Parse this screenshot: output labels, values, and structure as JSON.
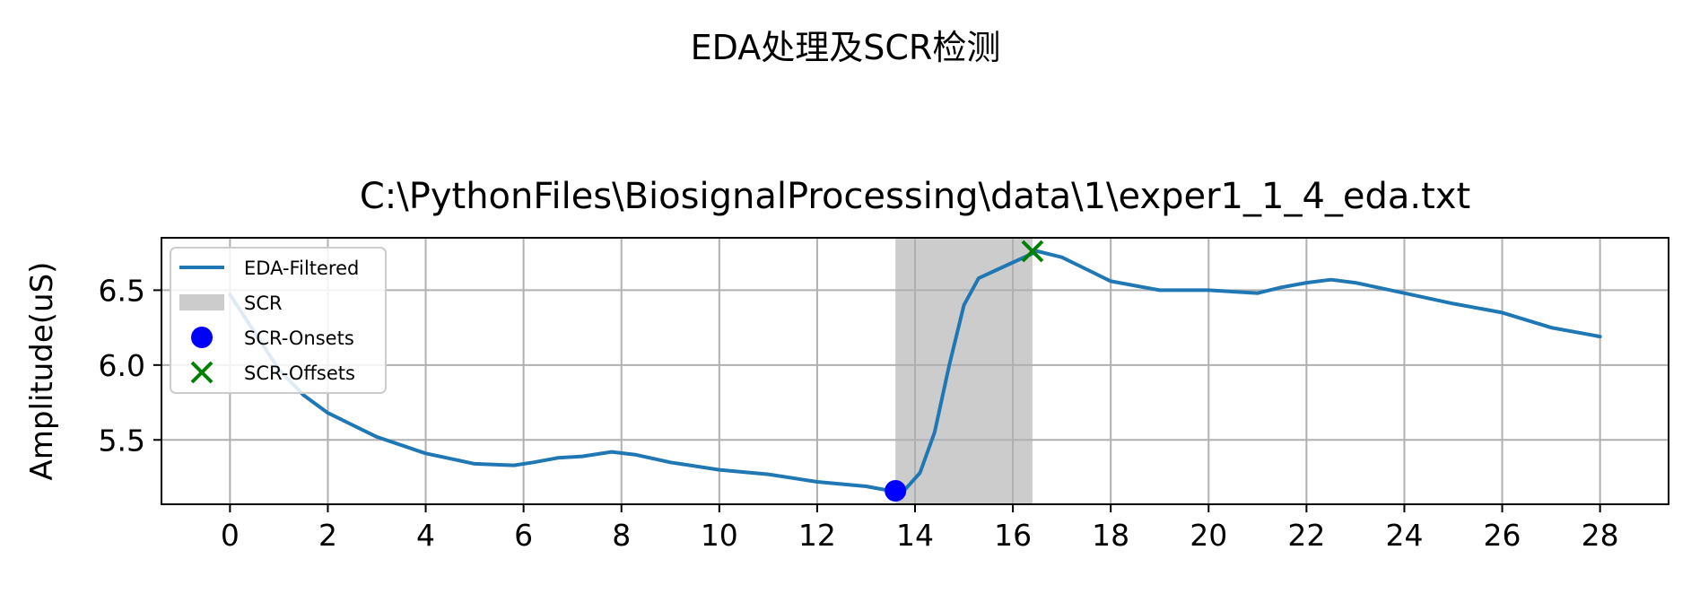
{
  "figure": {
    "suptitle": "EDA处理及SCR检测"
  },
  "chart_data": {
    "type": "line",
    "title": "C:\\PythonFiles\\BiosignalProcessing\\data\\1\\exper1_1_4_eda.txt",
    "xlabel": "",
    "ylabel": "Amplitude(uS)",
    "xlim": [
      -1.4,
      29.4
    ],
    "ylim": [
      5.07,
      6.85
    ],
    "xticks": [
      0,
      2,
      4,
      6,
      8,
      10,
      12,
      14,
      16,
      18,
      20,
      22,
      24,
      26,
      28
    ],
    "yticks": [
      5.5,
      6.0,
      6.5
    ],
    "ytick_labels": [
      "5.5",
      "6.0",
      "6.5"
    ],
    "grid": true,
    "legend_position": "upper-left",
    "series": [
      {
        "name": "EDA-Filtered",
        "color": "#1f77b4",
        "x": [
          0,
          0.5,
          1,
          1.5,
          2,
          3,
          4,
          5,
          5.8,
          6.2,
          6.7,
          7.2,
          7.8,
          8.3,
          9,
          10,
          11,
          12,
          13,
          13.5,
          13.8,
          14.1,
          14.4,
          14.7,
          15,
          15.3,
          15.7,
          16.1,
          16.5,
          17,
          17.5,
          18,
          19,
          20,
          21,
          21.5,
          22,
          22.5,
          23,
          24,
          25,
          26,
          27,
          28
        ],
        "y": [
          6.47,
          6.22,
          5.97,
          5.8,
          5.68,
          5.52,
          5.41,
          5.34,
          5.33,
          5.35,
          5.38,
          5.39,
          5.42,
          5.4,
          5.35,
          5.3,
          5.27,
          5.22,
          5.19,
          5.16,
          5.17,
          5.28,
          5.55,
          6.0,
          6.4,
          6.58,
          6.64,
          6.7,
          6.76,
          6.72,
          6.64,
          6.56,
          6.5,
          6.5,
          6.48,
          6.52,
          6.55,
          6.57,
          6.55,
          6.48,
          6.41,
          6.35,
          6.25,
          6.19
        ]
      }
    ],
    "scr_regions": [
      {
        "name": "SCR",
        "start": 13.6,
        "end": 16.4,
        "color": "#cccccc"
      }
    ],
    "markers": [
      {
        "name": "SCR-Onsets",
        "x": [
          13.6
        ],
        "y": [
          5.16
        ],
        "color": "#0000ff",
        "marker": "circle"
      },
      {
        "name": "SCR-Offsets",
        "x": [
          16.4
        ],
        "y": [
          6.76
        ],
        "color": "#008000",
        "marker": "x"
      }
    ]
  }
}
